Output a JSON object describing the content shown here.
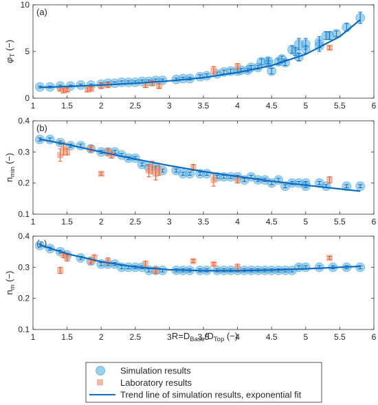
{
  "figure": {
    "xlabel_html": {
      "base": "R=D",
      "sub1": "Base",
      "mid": "/D",
      "sub2": "Top",
      "tail": " (−)"
    }
  },
  "legend": {
    "items": [
      {
        "label": "Simulation results",
        "marker": "circle"
      },
      {
        "label": "Laboratory results",
        "marker": "square"
      },
      {
        "label": "Trend line of simulation results, exponential fit",
        "marker": "line"
      }
    ]
  },
  "colors": {
    "simulation": "#4aa8dc",
    "laboratory": "#f4a07c",
    "laboratory_error": "#e8562a",
    "trend": "#0b6bbf",
    "axis": "#262626"
  },
  "chart_data": [
    {
      "type": "scatter",
      "panel": "(a)",
      "ylabel_symbol": "φ",
      "ylabel_sub": "T",
      "ylabel_tail": " (−)",
      "xlim": [
        1,
        6
      ],
      "ylim": [
        0,
        10
      ],
      "xticks": [
        1,
        1.5,
        2,
        2.5,
        3,
        3.5,
        4,
        4.5,
        5,
        5.5,
        6
      ],
      "yticks": [
        0,
        5,
        10
      ],
      "series": [
        {
          "name": "Simulation results",
          "kind": "sim",
          "points": [
            [
              1.1,
              1.2,
              0.1
            ],
            [
              1.25,
              1.2,
              0.1
            ],
            [
              1.4,
              1.3,
              0.1
            ],
            [
              1.55,
              1.3,
              0.1
            ],
            [
              1.7,
              1.4,
              0.1
            ],
            [
              1.85,
              1.4,
              0.1
            ],
            [
              2.0,
              1.5,
              0.15
            ],
            [
              2.1,
              1.6,
              0.15
            ],
            [
              2.2,
              1.6,
              0.15
            ],
            [
              2.3,
              1.7,
              0.15
            ],
            [
              2.4,
              1.7,
              0.15
            ],
            [
              2.5,
              1.7,
              0.15
            ],
            [
              2.6,
              1.8,
              0.15
            ],
            [
              2.7,
              1.8,
              0.15
            ],
            [
              2.8,
              1.9,
              0.15
            ],
            [
              2.9,
              1.9,
              0.15
            ],
            [
              3.1,
              2.0,
              0.15
            ],
            [
              3.2,
              2.1,
              0.15
            ],
            [
              3.3,
              2.1,
              0.15
            ],
            [
              3.45,
              2.3,
              0.2
            ],
            [
              3.55,
              2.4,
              0.2
            ],
            [
              3.7,
              2.6,
              0.2
            ],
            [
              3.8,
              2.8,
              0.2
            ],
            [
              3.9,
              2.9,
              0.2
            ],
            [
              4.0,
              2.9,
              0.2
            ],
            [
              4.05,
              3.0,
              0.2
            ],
            [
              4.15,
              3.0,
              0.2
            ],
            [
              4.2,
              3.3,
              0.2
            ],
            [
              4.3,
              3.3,
              0.2
            ],
            [
              4.35,
              3.9,
              0.3
            ],
            [
              4.45,
              3.7,
              0.3
            ],
            [
              4.45,
              4.0,
              0.3
            ],
            [
              4.5,
              2.9,
              0.3
            ],
            [
              4.6,
              3.9,
              0.3
            ],
            [
              4.65,
              4.2,
              0.3
            ],
            [
              4.7,
              3.8,
              0.3
            ],
            [
              4.8,
              5.2,
              0.4
            ],
            [
              4.85,
              5.0,
              0.4
            ],
            [
              4.9,
              4.4,
              0.4
            ],
            [
              4.9,
              5.8,
              0.6
            ],
            [
              5.0,
              5.8,
              0.6
            ],
            [
              5.0,
              5.2,
              0.4
            ],
            [
              5.2,
              5.6,
              0.6
            ],
            [
              5.2,
              6.0,
              0.6
            ],
            [
              5.3,
              6.7,
              0.4
            ],
            [
              5.35,
              6.7,
              0.4
            ],
            [
              5.45,
              6.9,
              0.3
            ],
            [
              5.6,
              7.6,
              0.4
            ],
            [
              5.8,
              8.6,
              0.6
            ]
          ]
        },
        {
          "name": "Laboratory results",
          "kind": "lab",
          "points": [
            [
              1.4,
              1.0,
              0.2
            ],
            [
              1.45,
              0.8,
              0.2
            ],
            [
              1.5,
              0.9,
              0.2
            ],
            [
              1.8,
              0.9,
              0.2
            ],
            [
              1.85,
              1.0,
              0.2
            ],
            [
              2.0,
              1.3,
              0.25
            ],
            [
              2.1,
              1.4,
              0.25
            ],
            [
              2.65,
              1.4,
              0.25
            ],
            [
              2.75,
              1.6,
              0.25
            ],
            [
              2.85,
              1.3,
              0.25
            ],
            [
              3.65,
              3.0,
              0.4
            ],
            [
              4.0,
              3.4,
              0.3
            ],
            [
              5.35,
              5.4,
              0.2
            ]
          ]
        }
      ],
      "trend": {
        "model": "exponential",
        "x": [
          1.1,
          1.5,
          2,
          2.5,
          3,
          3.5,
          4,
          4.5,
          5,
          5.5,
          5.8
        ],
        "y": [
          1.15,
          1.25,
          1.4,
          1.6,
          1.85,
          2.2,
          2.75,
          3.5,
          4.7,
          6.6,
          8.4
        ]
      }
    },
    {
      "type": "scatter",
      "panel": "(b)",
      "ylabel_symbol": "n",
      "ylabel_sub": "min",
      "ylabel_tail": " (−)",
      "xlim": [
        1,
        6
      ],
      "ylim": [
        0.1,
        0.4
      ],
      "xticks": [
        1,
        1.5,
        2,
        2.5,
        3,
        3.5,
        4,
        4.5,
        5,
        5.5,
        6
      ],
      "yticks": [
        0.1,
        0.2,
        0.3,
        0.4
      ],
      "series": [
        {
          "name": "Simulation results",
          "kind": "sim",
          "points": [
            [
              1.1,
              0.34,
              0.005
            ],
            [
              1.25,
              0.34,
              0.005
            ],
            [
              1.4,
              0.33,
              0.005
            ],
            [
              1.55,
              0.32,
              0.005
            ],
            [
              1.7,
              0.32,
              0.005
            ],
            [
              1.85,
              0.31,
              0.005
            ],
            [
              2.0,
              0.3,
              0.005
            ],
            [
              2.1,
              0.3,
              0.005
            ],
            [
              2.2,
              0.3,
              0.005
            ],
            [
              2.3,
              0.29,
              0.005
            ],
            [
              2.4,
              0.28,
              0.005
            ],
            [
              2.5,
              0.28,
              0.005
            ],
            [
              2.6,
              0.26,
              0.005
            ],
            [
              2.7,
              0.25,
              0.005
            ],
            [
              2.8,
              0.25,
              0.005
            ],
            [
              2.9,
              0.24,
              0.005
            ],
            [
              3.1,
              0.24,
              0.005
            ],
            [
              3.2,
              0.23,
              0.005
            ],
            [
              3.3,
              0.23,
              0.005
            ],
            [
              3.45,
              0.23,
              0.005
            ],
            [
              3.55,
              0.23,
              0.005
            ],
            [
              3.7,
              0.22,
              0.005
            ],
            [
              3.8,
              0.22,
              0.005
            ],
            [
              3.9,
              0.22,
              0.005
            ],
            [
              4.0,
              0.22,
              0.005
            ],
            [
              4.1,
              0.21,
              0.005
            ],
            [
              4.2,
              0.22,
              0.005
            ],
            [
              4.3,
              0.21,
              0.005
            ],
            [
              4.4,
              0.21,
              0.005
            ],
            [
              4.5,
              0.2,
              0.005
            ],
            [
              4.6,
              0.21,
              0.005
            ],
            [
              4.7,
              0.19,
              0.005
            ],
            [
              4.8,
              0.2,
              0.005
            ],
            [
              4.9,
              0.2,
              0.005
            ],
            [
              5.0,
              0.19,
              0.005
            ],
            [
              5.0,
              0.2,
              0.005
            ],
            [
              5.2,
              0.2,
              0.005
            ],
            [
              5.3,
              0.19,
              0.005
            ],
            [
              5.6,
              0.19,
              0.005
            ],
            [
              5.8,
              0.19,
              0.005
            ]
          ]
        },
        {
          "name": "Laboratory results",
          "kind": "lab",
          "points": [
            [
              1.4,
              0.29,
              0.02
            ],
            [
              1.45,
              0.31,
              0.02
            ],
            [
              1.5,
              0.3,
              0.01
            ],
            [
              1.85,
              0.31,
              0.01
            ],
            [
              2.0,
              0.23,
              0.005
            ],
            [
              2.1,
              0.3,
              0.01
            ],
            [
              2.15,
              0.29,
              0.01
            ],
            [
              2.7,
              0.24,
              0.02
            ],
            [
              2.75,
              0.25,
              0.02
            ],
            [
              2.8,
              0.23,
              0.02
            ],
            [
              2.85,
              0.24,
              0.015
            ],
            [
              3.35,
              0.25,
              0.01
            ],
            [
              3.65,
              0.21,
              0.02
            ],
            [
              4.0,
              0.21,
              0.01
            ],
            [
              5.35,
              0.21,
              0.01
            ]
          ]
        }
      ],
      "trend": {
        "model": "exponential",
        "x": [
          1.1,
          1.5,
          2,
          2.5,
          3,
          3.5,
          4,
          4.5,
          5,
          5.5,
          5.8
        ],
        "y": [
          0.341,
          0.324,
          0.3,
          0.277,
          0.256,
          0.237,
          0.221,
          0.206,
          0.193,
          0.181,
          0.174
        ]
      }
    },
    {
      "type": "scatter",
      "panel": "(c)",
      "ylabel_symbol": "n",
      "ylabel_sub": "m",
      "ylabel_tail": " (−)",
      "xlim": [
        1,
        6
      ],
      "ylim": [
        0.1,
        0.4
      ],
      "xticks": [
        1,
        1.5,
        2,
        2.5,
        3,
        3.5,
        4,
        4.5,
        5,
        5.5,
        6
      ],
      "yticks": [
        0.1,
        0.2,
        0.3,
        0.4
      ],
      "series": [
        {
          "name": "Simulation results",
          "kind": "sim",
          "points": [
            [
              1.1,
              0.37,
              0.005
            ],
            [
              1.25,
              0.36,
              0.005
            ],
            [
              1.4,
              0.35,
              0.005
            ],
            [
              1.5,
              0.34,
              0.005
            ],
            [
              1.7,
              0.33,
              0.005
            ],
            [
              1.85,
              0.32,
              0.005
            ],
            [
              2.0,
              0.31,
              0.005
            ],
            [
              2.1,
              0.31,
              0.005
            ],
            [
              2.2,
              0.31,
              0.005
            ],
            [
              2.3,
              0.3,
              0.005
            ],
            [
              2.4,
              0.3,
              0.005
            ],
            [
              2.5,
              0.3,
              0.005
            ],
            [
              2.6,
              0.3,
              0.005
            ],
            [
              2.7,
              0.29,
              0.005
            ],
            [
              2.8,
              0.29,
              0.005
            ],
            [
              2.9,
              0.29,
              0.005
            ],
            [
              3.1,
              0.29,
              0.005
            ],
            [
              3.2,
              0.29,
              0.005
            ],
            [
              3.3,
              0.29,
              0.005
            ],
            [
              3.45,
              0.29,
              0.005
            ],
            [
              3.55,
              0.29,
              0.005
            ],
            [
              3.7,
              0.29,
              0.005
            ],
            [
              3.8,
              0.29,
              0.005
            ],
            [
              3.9,
              0.29,
              0.005
            ],
            [
              4.0,
              0.29,
              0.005
            ],
            [
              4.1,
              0.29,
              0.005
            ],
            [
              4.2,
              0.29,
              0.005
            ],
            [
              4.3,
              0.29,
              0.005
            ],
            [
              4.4,
              0.29,
              0.005
            ],
            [
              4.5,
              0.29,
              0.005
            ],
            [
              4.6,
              0.29,
              0.005
            ],
            [
              4.7,
              0.29,
              0.005
            ],
            [
              4.8,
              0.29,
              0.005
            ],
            [
              4.9,
              0.3,
              0.005
            ],
            [
              5.0,
              0.3,
              0.005
            ],
            [
              5.2,
              0.3,
              0.005
            ],
            [
              5.4,
              0.3,
              0.005
            ],
            [
              5.6,
              0.3,
              0.005
            ],
            [
              5.8,
              0.3,
              0.005
            ]
          ]
        },
        {
          "name": "Laboratory results",
          "kind": "lab",
          "points": [
            [
              1.4,
              0.29,
              0.01
            ],
            [
              1.45,
              0.34,
              0.01
            ],
            [
              1.5,
              0.33,
              0.01
            ],
            [
              1.85,
              0.32,
              0.01
            ],
            [
              1.9,
              0.33,
              0.01
            ],
            [
              2.1,
              0.32,
              0.01
            ],
            [
              2.65,
              0.31,
              0.01
            ],
            [
              2.8,
              0.29,
              0.01
            ],
            [
              3.35,
              0.32,
              0.005
            ],
            [
              3.65,
              0.31,
              0.005
            ],
            [
              4.0,
              0.3,
              0.01
            ],
            [
              5.35,
              0.33,
              0.005
            ]
          ]
        }
      ],
      "trend": {
        "model": "exponential",
        "x": [
          1.1,
          1.5,
          2,
          2.5,
          3,
          3.5,
          4,
          4.5,
          5,
          5.5,
          5.8
        ],
        "y": [
          0.372,
          0.343,
          0.318,
          0.301,
          0.292,
          0.289,
          0.289,
          0.291,
          0.295,
          0.3,
          0.303
        ]
      }
    }
  ]
}
